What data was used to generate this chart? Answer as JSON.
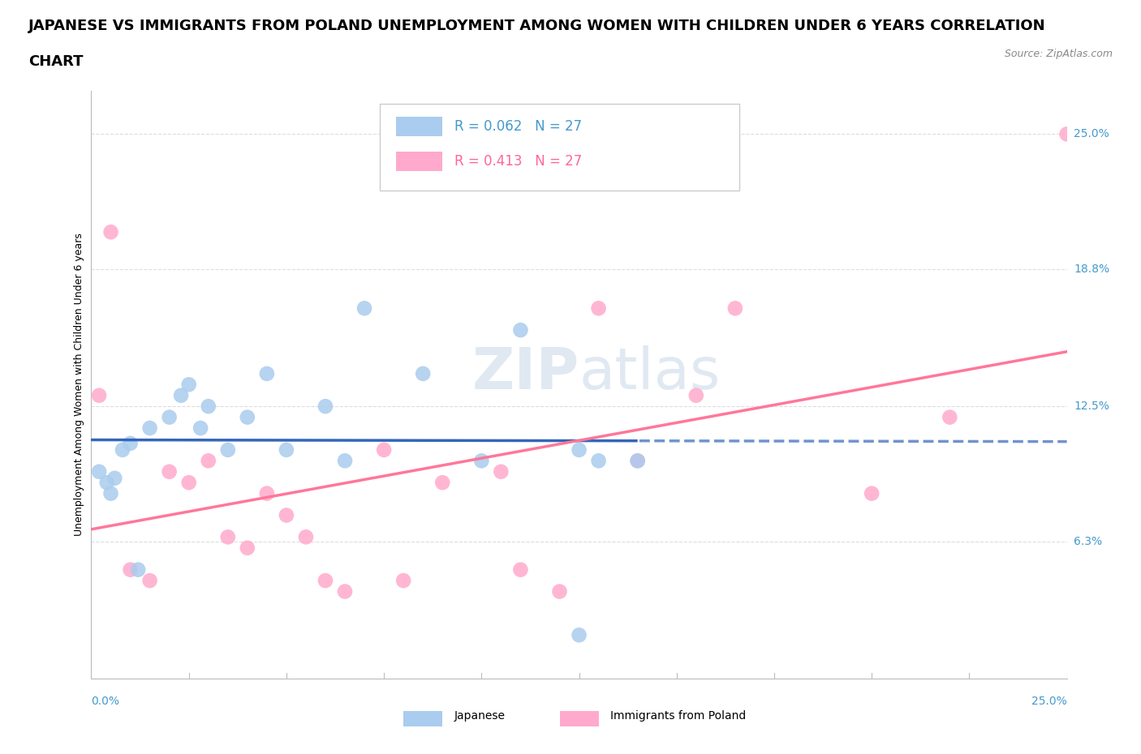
{
  "title_line1": "JAPANESE VS IMMIGRANTS FROM POLAND UNEMPLOYMENT AMONG WOMEN WITH CHILDREN UNDER 6 YEARS CORRELATION",
  "title_line2": "CHART",
  "source": "Source: ZipAtlas.com",
  "ylabel": "Unemployment Among Women with Children Under 6 years",
  "ytick_labels": [
    "6.3%",
    "12.5%",
    "18.8%",
    "25.0%"
  ],
  "ytick_values": [
    6.3,
    12.5,
    18.8,
    25.0
  ],
  "xlim": [
    0,
    25
  ],
  "ylim": [
    0,
    27
  ],
  "r_japanese": 0.062,
  "n_japanese": 27,
  "r_poland": 0.413,
  "n_poland": 27,
  "color_japanese": "#AACCEE",
  "color_poland": "#FFAACC",
  "color_japanese_text": "#4499CC",
  "color_poland_text": "#FF6699",
  "color_trend_japanese": "#3366BB",
  "color_trend_poland": "#FF7799",
  "watermark_top": "ZIP",
  "watermark_bottom": "atlas",
  "japanese_x": [
    0.2,
    0.4,
    0.5,
    0.6,
    0.8,
    1.0,
    1.2,
    1.5,
    2.0,
    2.3,
    2.5,
    2.8,
    3.0,
    3.5,
    4.0,
    4.5,
    5.0,
    6.0,
    6.5,
    7.0,
    8.5,
    10.0,
    12.5,
    13.0,
    14.0,
    12.5,
    11.0
  ],
  "japanese_y": [
    9.5,
    9.0,
    8.5,
    9.2,
    10.5,
    10.8,
    5.0,
    11.5,
    12.0,
    13.0,
    13.5,
    11.5,
    12.5,
    10.5,
    12.0,
    14.0,
    10.5,
    12.5,
    10.0,
    17.0,
    14.0,
    10.0,
    10.5,
    10.0,
    10.0,
    2.0,
    16.0
  ],
  "poland_x": [
    0.2,
    0.5,
    1.0,
    1.5,
    2.0,
    2.5,
    3.0,
    3.5,
    4.0,
    4.5,
    5.0,
    5.5,
    6.0,
    6.5,
    7.5,
    8.0,
    9.0,
    10.5,
    11.0,
    12.0,
    13.0,
    14.0,
    15.5,
    16.5,
    20.0,
    22.0,
    25.0
  ],
  "poland_y": [
    13.0,
    20.5,
    5.0,
    4.5,
    9.5,
    9.0,
    10.0,
    6.5,
    6.0,
    8.5,
    7.5,
    6.5,
    4.5,
    4.0,
    10.5,
    4.5,
    9.0,
    9.5,
    5.0,
    4.0,
    17.0,
    10.0,
    13.0,
    17.0,
    8.5,
    12.0,
    25.0
  ],
  "background_color": "#FFFFFF",
  "grid_color": "#DDDDDD",
  "title_fontsize": 13,
  "axis_label_fontsize": 9,
  "tick_fontsize": 10,
  "legend_fontsize": 12
}
